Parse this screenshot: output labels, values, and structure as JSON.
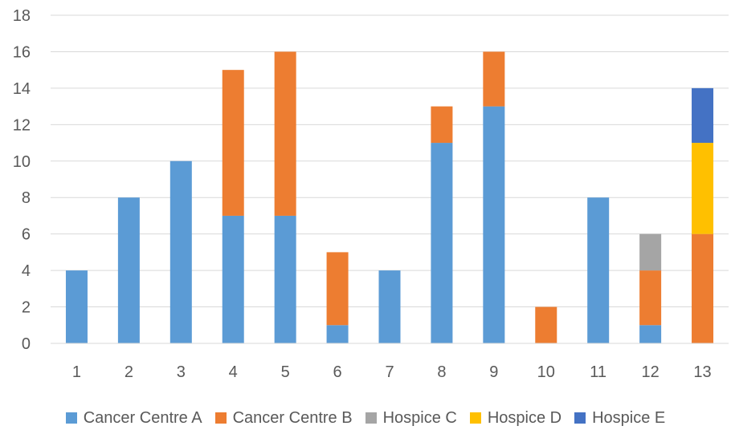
{
  "chart_data": {
    "type": "bar",
    "stacked": true,
    "title": "",
    "xlabel": "",
    "ylabel": "",
    "categories": [
      "1",
      "2",
      "3",
      "4",
      "5",
      "6",
      "7",
      "8",
      "9",
      "10",
      "11",
      "12",
      "13"
    ],
    "ylim": [
      0,
      18
    ],
    "yticks": [
      "0",
      "2",
      "4",
      "6",
      "8",
      "10",
      "12",
      "14",
      "16",
      "18"
    ],
    "grid": true,
    "legend_position": "bottom",
    "series": [
      {
        "name": "Cancer Centre A",
        "color": "#5B9BD5",
        "values": [
          4,
          8,
          10,
          7,
          7,
          1,
          4,
          11,
          13,
          0,
          8,
          1,
          0
        ]
      },
      {
        "name": "Cancer Centre B",
        "color": "#ED7D31",
        "values": [
          0,
          0,
          0,
          8,
          9,
          4,
          0,
          2,
          3,
          2,
          0,
          3,
          6
        ]
      },
      {
        "name": "Hospice C",
        "color": "#A5A5A5",
        "values": [
          0,
          0,
          0,
          0,
          0,
          0,
          0,
          0,
          0,
          0,
          0,
          2,
          0
        ]
      },
      {
        "name": "Hospice D",
        "color": "#FFC000",
        "values": [
          0,
          0,
          0,
          0,
          0,
          0,
          0,
          0,
          0,
          0,
          0,
          0,
          5
        ]
      },
      {
        "name": "Hospice E",
        "color": "#4472C4",
        "values": [
          0,
          0,
          0,
          0,
          0,
          0,
          0,
          0,
          0,
          0,
          0,
          0,
          3
        ]
      }
    ]
  }
}
